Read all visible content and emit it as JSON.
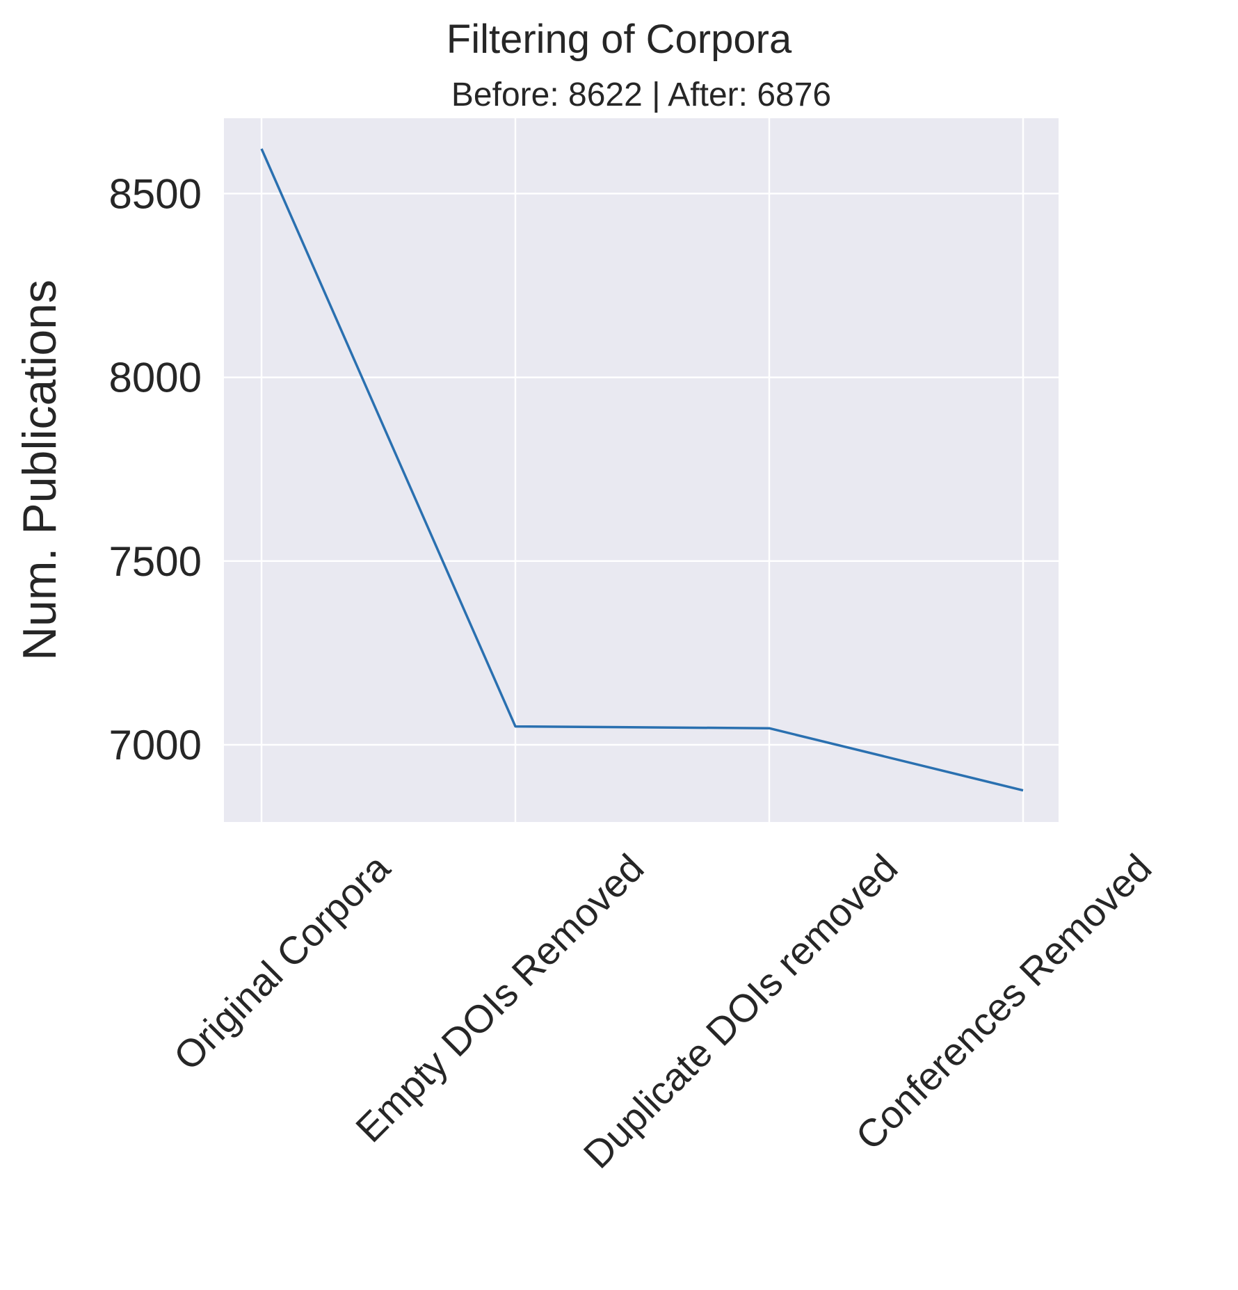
{
  "chart_data": {
    "type": "line",
    "title": "Filtering of Corpora",
    "subtitle": "Before: 8622 | After: 6876",
    "xlabel": "",
    "ylabel": "Num. Publications",
    "categories": [
      "Original Corpora",
      "Empty DOIs Removed",
      "Duplicate DOIs removed",
      "Conferences Removed"
    ],
    "series": [
      {
        "values": [
          8622,
          7050,
          7045,
          6876
        ]
      }
    ],
    "yticks": [
      7000,
      7500,
      8000,
      8500
    ],
    "ylim": [
      6790,
      8705
    ],
    "grid": true,
    "colors": {
      "line": "#2a70b0",
      "plot_bg": "#e9e9f1",
      "grid": "#ffffff",
      "text": "#262626"
    }
  }
}
